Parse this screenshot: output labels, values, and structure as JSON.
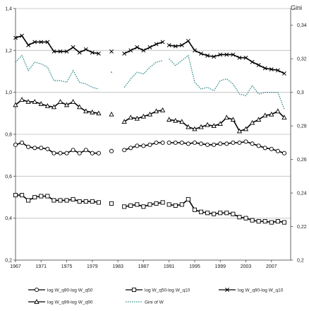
{
  "chart_data": {
    "type": "line",
    "right_axis_title": "Gini",
    "x_ticks": [
      1967,
      1971,
      1975,
      1979,
      1983,
      1987,
      1991,
      1995,
      1999,
      2003,
      2007
    ],
    "xlim": [
      1967,
      2010
    ],
    "ylim_left": [
      0.2,
      1.4
    ],
    "y_ticks_left": [
      "0,2",
      "0,4",
      "0,6",
      "0,8",
      "1,0",
      "1,2",
      "1,4"
    ],
    "y_tick_values_left": [
      0.2,
      0.4,
      0.6,
      0.8,
      1.0,
      1.2,
      1.4
    ],
    "ylim_right": [
      0.2,
      0.35
    ],
    "y_ticks_right": [
      "0,2",
      "0,22",
      "0,24",
      "0,26",
      "0,28",
      "0,3",
      "0,32",
      "0,34"
    ],
    "y_tick_values_right": [
      0.2,
      0.22,
      0.24,
      0.26,
      0.28,
      0.3,
      0.32,
      0.34
    ],
    "grid": true,
    "legend_position": "bottom",
    "series": [
      {
        "name": "log W_q90-log W_q50",
        "marker": "circle",
        "axis": "left",
        "color": "#000000",
        "segments": [
          {
            "x": [
              1967,
              1968,
              1969,
              1970,
              1971,
              1972,
              1973,
              1974,
              1975,
              1976,
              1977,
              1978,
              1979,
              1980
            ],
            "y": [
              0.75,
              0.76,
              0.74,
              0.735,
              0.735,
              0.73,
              0.71,
              0.71,
              0.71,
              0.725,
              0.71,
              0.725,
              0.71,
              0.71
            ]
          },
          {
            "x": [
              1982
            ],
            "y": [
              0.72
            ]
          },
          {
            "x": [
              1984,
              1985,
              1986,
              1987,
              1988,
              1989,
              1990
            ],
            "y": [
              0.725,
              0.735,
              0.745,
              0.745,
              0.75,
              0.76,
              0.76
            ]
          },
          {
            "x": [
              1991,
              1992,
              1993,
              1994,
              1995,
              1996,
              1997,
              1998,
              1999,
              2000,
              2001,
              2002,
              2003,
              2004,
              2005,
              2006,
              2007,
              2008,
              2009
            ],
            "y": [
              0.76,
              0.76,
              0.76,
              0.755,
              0.76,
              0.755,
              0.75,
              0.75,
              0.755,
              0.755,
              0.76,
              0.76,
              0.765,
              0.755,
              0.745,
              0.735,
              0.73,
              0.72,
              0.71
            ]
          }
        ]
      },
      {
        "name": "log W_q50-log W_q10",
        "marker": "square",
        "axis": "left",
        "color": "#000000",
        "segments": [
          {
            "x": [
              1967,
              1968,
              1969,
              1970,
              1971,
              1972,
              1973,
              1974,
              1975,
              1976,
              1977,
              1978,
              1979,
              1980
            ],
            "y": [
              0.51,
              0.51,
              0.485,
              0.5,
              0.505,
              0.505,
              0.485,
              0.485,
              0.485,
              0.49,
              0.48,
              0.48,
              0.48,
              0.475
            ]
          },
          {
            "x": [
              1982
            ],
            "y": [
              0.47
            ]
          },
          {
            "x": [
              1984,
              1985,
              1986,
              1987,
              1988,
              1989,
              1990
            ],
            "y": [
              0.455,
              0.46,
              0.465,
              0.455,
              0.465,
              0.47,
              0.475
            ]
          },
          {
            "x": [
              1991,
              1992,
              1993,
              1994,
              1995,
              1996,
              1997,
              1998,
              1999,
              2000,
              2001,
              2002,
              2003,
              2004,
              2005,
              2006,
              2007,
              2008,
              2009
            ],
            "y": [
              0.465,
              0.46,
              0.465,
              0.49,
              0.44,
              0.43,
              0.425,
              0.42,
              0.425,
              0.425,
              0.42,
              0.405,
              0.4,
              0.39,
              0.385,
              0.385,
              0.38,
              0.385,
              0.38
            ]
          }
        ]
      },
      {
        "name": "log W_q90-log W_q10",
        "marker": "cross",
        "axis": "left",
        "color": "#000000",
        "segments": [
          {
            "x": [
              1967,
              1968,
              1969,
              1970,
              1971,
              1972,
              1973,
              1974,
              1975,
              1976,
              1977,
              1978,
              1979,
              1980
            ],
            "y": [
              1.26,
              1.27,
              1.225,
              1.24,
              1.24,
              1.24,
              1.195,
              1.195,
              1.195,
              1.215,
              1.19,
              1.205,
              1.19,
              1.185
            ]
          },
          {
            "x": [
              1982
            ],
            "y": [
              1.195
            ]
          },
          {
            "x": [
              1984,
              1985,
              1986,
              1987,
              1988,
              1989,
              1990
            ],
            "y": [
              1.185,
              1.2,
              1.215,
              1.2,
              1.215,
              1.23,
              1.24
            ]
          },
          {
            "x": [
              1991,
              1992,
              1993,
              1994,
              1995,
              1996,
              1997,
              1998,
              1999,
              2000,
              2001,
              2002,
              2003,
              2004,
              2005,
              2006,
              2007,
              2008,
              2009
            ],
            "y": [
              1.225,
              1.22,
              1.225,
              1.245,
              1.2,
              1.185,
              1.175,
              1.17,
              1.18,
              1.18,
              1.18,
              1.165,
              1.165,
              1.145,
              1.13,
              1.115,
              1.11,
              1.105,
              1.09
            ]
          }
        ]
      },
      {
        "name": "log W_q99-log W_q90",
        "marker": "triangle",
        "axis": "left",
        "color": "#000000",
        "segments": [
          {
            "x": [
              1967,
              1968,
              1969,
              1970,
              1971,
              1972,
              1973,
              1974,
              1975,
              1976,
              1977,
              1978,
              1979,
              1980
            ],
            "y": [
              0.94,
              0.965,
              0.955,
              0.955,
              0.945,
              0.935,
              0.93,
              0.955,
              0.94,
              0.955,
              0.93,
              0.91,
              0.905,
              0.9
            ]
          },
          {
            "x": [
              1982
            ],
            "y": [
              0.895
            ]
          },
          {
            "x": [
              1984,
              1985,
              1986,
              1987,
              1988,
              1989,
              1990
            ],
            "y": [
              0.86,
              0.88,
              0.875,
              0.885,
              0.895,
              0.91,
              0.915
            ]
          },
          {
            "x": [
              1991,
              1992,
              1993,
              1994,
              1995,
              1996,
              1997,
              1998,
              1999,
              2000,
              2001,
              2002,
              2003,
              2004,
              2005,
              2006,
              2007,
              2008,
              2009
            ],
            "y": [
              0.87,
              0.865,
              0.86,
              0.835,
              0.825,
              0.835,
              0.845,
              0.84,
              0.85,
              0.88,
              0.87,
              0.815,
              0.825,
              0.855,
              0.87,
              0.89,
              0.895,
              0.91,
              0.88
            ]
          }
        ]
      },
      {
        "name": "Gini of W",
        "marker": "none",
        "axis": "right",
        "color": "#2e8b8b",
        "segments": [
          {
            "x": [
              1967,
              1968,
              1969,
              1970,
              1971,
              1972,
              1973,
              1974,
              1975,
              1976,
              1977,
              1978,
              1979,
              1980
            ],
            "y": [
              0.318,
              0.322,
              0.313,
              0.318,
              0.317,
              0.315,
              0.307,
              0.307,
              0.306,
              0.313,
              0.306,
              0.305,
              0.303,
              0.302
            ]
          },
          {
            "x": [
              1982
            ],
            "y": [
              0.312
            ]
          },
          {
            "x": [
              1984,
              1985,
              1986,
              1987,
              1988,
              1989,
              1990
            ],
            "y": [
              0.303,
              0.308,
              0.312,
              0.311,
              0.315,
              0.318,
              0.319
            ]
          },
          {
            "x": [
              1991,
              1992,
              1993,
              1994,
              1995,
              1996,
              1997,
              1998,
              1999,
              2000,
              2001,
              2002,
              2003,
              2004,
              2005,
              2006,
              2007,
              2008,
              2009
            ],
            "y": [
              0.32,
              0.316,
              0.319,
              0.322,
              0.306,
              0.302,
              0.303,
              0.301,
              0.307,
              0.308,
              0.305,
              0.299,
              0.298,
              0.304,
              0.299,
              0.3,
              0.3,
              0.3,
              0.29
            ]
          }
        ]
      }
    ]
  }
}
